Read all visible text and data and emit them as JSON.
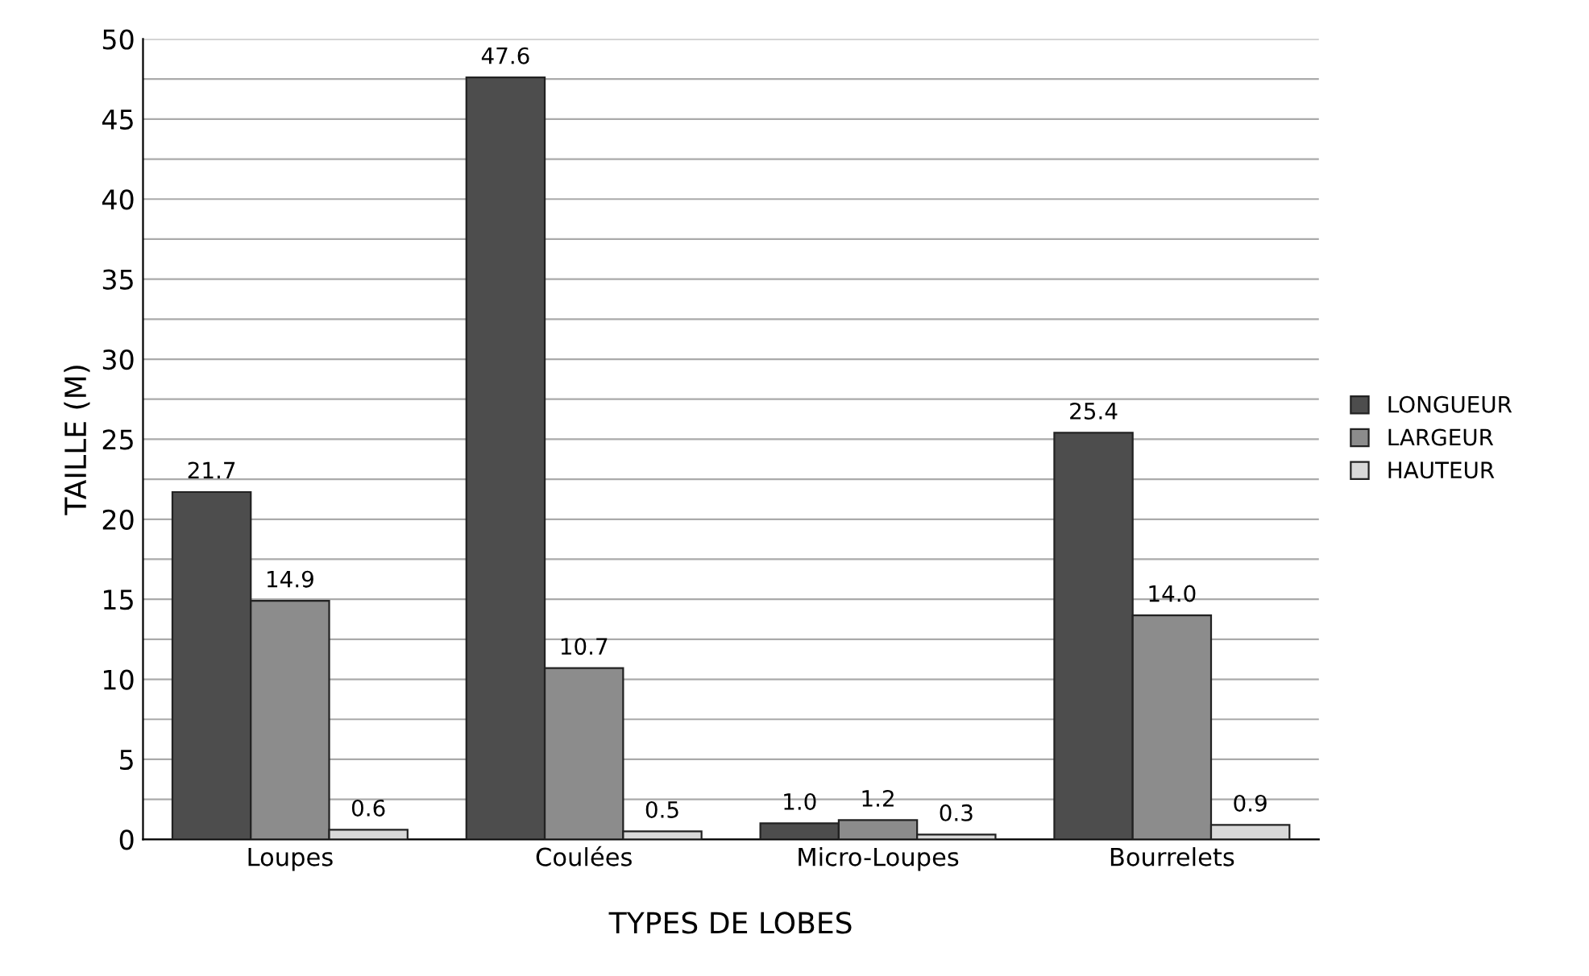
{
  "chart_data": {
    "type": "bar",
    "xlabel": "TYPES DE LOBES",
    "ylabel": "TAILLE (M)",
    "categories": [
      "Loupes",
      "Coulées",
      "Micro-Loupes",
      "Bourrelets"
    ],
    "series": [
      {
        "name": "LONGUEUR",
        "color": "#4d4d4d",
        "values": [
          21.7,
          47.6,
          1.0,
          25.4
        ],
        "value_labels": [
          "21.7",
          "47.6",
          "1.0",
          "25.4"
        ]
      },
      {
        "name": "LARGEUR",
        "color": "#8c8c8c",
        "values": [
          14.9,
          10.7,
          1.2,
          14.0
        ],
        "value_labels": [
          "14.9",
          "10.7",
          "1.2",
          "14.0"
        ]
      },
      {
        "name": "HAUTEUR",
        "color": "#d9d9d9",
        "values": [
          0.6,
          0.5,
          0.3,
          0.9
        ],
        "value_labels": [
          "0.6",
          "0.5",
          "0.3",
          "0.9"
        ]
      }
    ],
    "ylim": [
      0,
      50
    ],
    "yticks": [
      0,
      {
        "value": 2.5,
        "label": null
      },
      5,
      {
        "value": 7.5,
        "label": null
      },
      10,
      {
        "value": 12.5,
        "label": null
      },
      15,
      {
        "value": 17.5,
        "label": null
      },
      20,
      {
        "value": 22.5,
        "label": null
      },
      25,
      {
        "value": 27.5,
        "label": null
      },
      30,
      {
        "value": 32.5,
        "label": null
      },
      35,
      {
        "value": 37.5,
        "label": null
      },
      40,
      {
        "value": 42.5,
        "label": null
      },
      45,
      {
        "value": 47.5,
        "label": null
      },
      50
    ],
    "grid": "y",
    "legend": "right"
  }
}
